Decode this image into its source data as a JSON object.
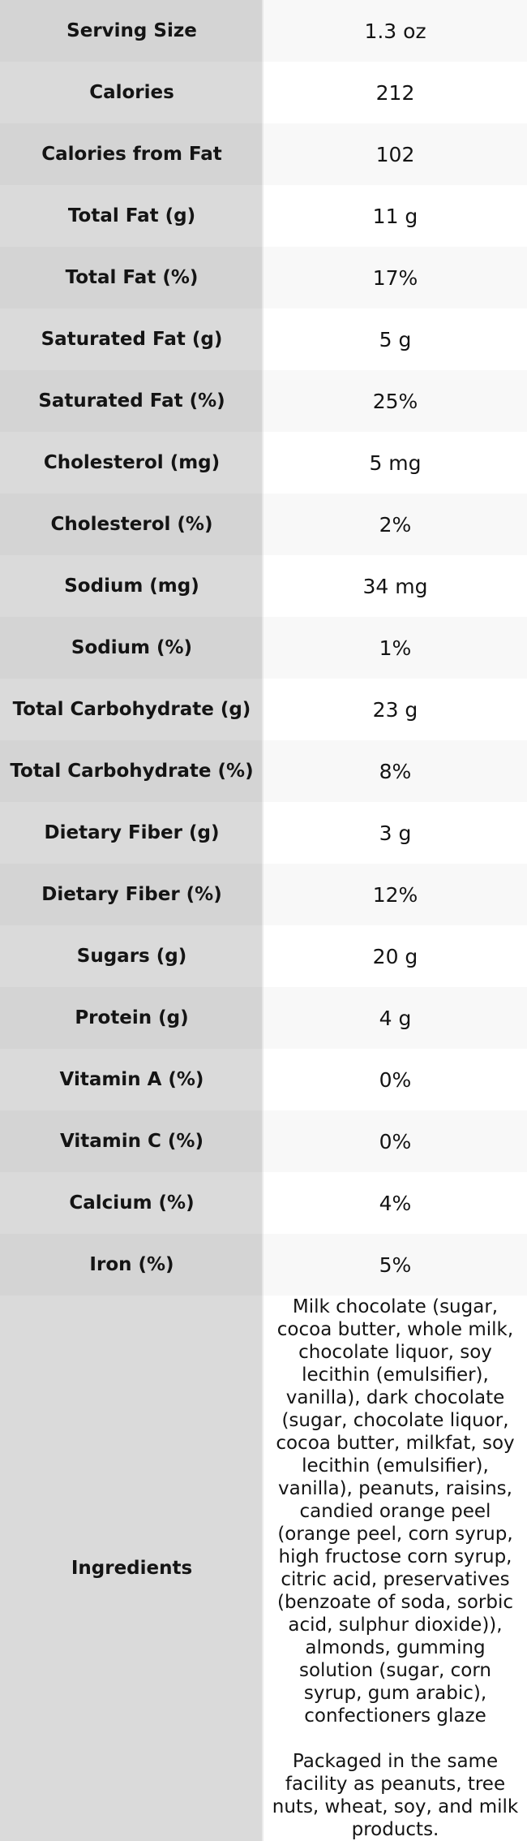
{
  "table": {
    "rows": [
      {
        "label": "Serving Size",
        "value": "1.3 oz"
      },
      {
        "label": "Calories",
        "value": "212"
      },
      {
        "label": "Calories from Fat",
        "value": "102"
      },
      {
        "label": "Total Fat (g)",
        "value": "11 g"
      },
      {
        "label": "Total Fat (%)",
        "value": "17%"
      },
      {
        "label": "Saturated Fat (g)",
        "value": "5 g"
      },
      {
        "label": "Saturated Fat (%)",
        "value": "25%"
      },
      {
        "label": "Cholesterol (mg)",
        "value": "5 mg"
      },
      {
        "label": "Cholesterol (%)",
        "value": "2%"
      },
      {
        "label": "Sodium (mg)",
        "value": "34 mg"
      },
      {
        "label": "Sodium (%)",
        "value": "1%"
      },
      {
        "label": "Total Carbohydrate (g)",
        "value": "23 g"
      },
      {
        "label": "Total Carbohydrate (%)",
        "value": "8%"
      },
      {
        "label": "Dietary Fiber (g)",
        "value": "3 g"
      },
      {
        "label": "Dietary Fiber (%)",
        "value": "12%"
      },
      {
        "label": "Sugars (g)",
        "value": "20 g"
      },
      {
        "label": "Protein (g)",
        "value": "4 g"
      },
      {
        "label": "Vitamin A (%)",
        "value": "0%"
      },
      {
        "label": "Vitamin C (%)",
        "value": "0%"
      },
      {
        "label": "Calcium (%)",
        "value": "4%"
      },
      {
        "label": "Iron (%)",
        "value": "5%"
      },
      {
        "label": "Ingredients",
        "value": "Milk chocolate (sugar,\ncocoa butter, whole milk,\nchocolate liquor, soy\nlecithin (emulsifier),\nvanilla), dark chocolate\n(sugar, chocolate liquor,\ncocoa butter, milkfat, soy\nlecithin (emulsifier),\nvanilla), peanuts, raisins,\ncandied orange peel\n(orange peel, corn syrup,\nhigh fructose corn syrup,\ncitric acid, preservatives\n(benzoate of soda, sorbic\nacid, sulphur dioxide)),\nalmonds, gumming\nsolution (sugar, corn\nsyrup, gum arabic),\nconfectioners glaze\n\nPackaged in the same\nfacility as peanuts, tree\nnuts, wheat, soy, and milk\nproducts."
      }
    ],
    "colors": {
      "label_column_odd_row": "#d4d4d4",
      "label_column_even_row": "#dadada",
      "value_column_odd_row": "#f8f8f8",
      "value_column_even_row": "#ffffff",
      "text": "#141414"
    }
  }
}
